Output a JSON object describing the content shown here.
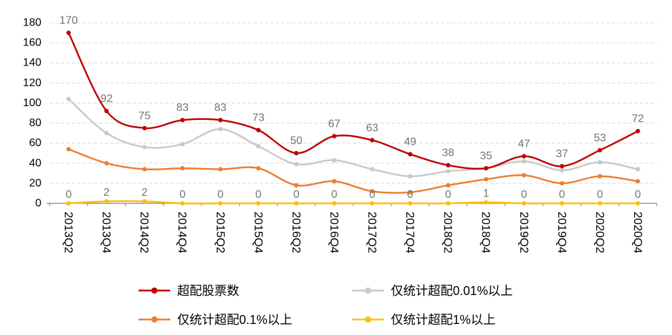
{
  "chart_data": {
    "type": "line",
    "categories": [
      "2013Q2",
      "2013Q4",
      "2014Q2",
      "2014Q4",
      "2015Q2",
      "2015Q4",
      "2016Q2",
      "2016Q4",
      "2017Q2",
      "2017Q4",
      "2018Q2",
      "2018Q4",
      "2019Q2",
      "2019Q4",
      "2020Q2",
      "2020Q4"
    ],
    "series": [
      {
        "name": "超配股票数",
        "color": "#c00000",
        "values": [
          170,
          92,
          75,
          83,
          83,
          73,
          50,
          67,
          63,
          49,
          38,
          35,
          47,
          37,
          53,
          72
        ],
        "point_labels": true
      },
      {
        "name": "仅统计超配0.01%以上",
        "color": "#c9c9c9",
        "values": [
          104,
          70,
          56,
          59,
          74,
          57,
          39,
          43,
          34,
          27,
          32,
          35,
          42,
          33,
          41,
          34
        ],
        "point_labels": false
      },
      {
        "name": "仅统计超配0.1%以上",
        "color": "#ed7d31",
        "values": [
          54,
          40,
          34,
          35,
          34,
          35,
          18,
          22,
          12,
          11,
          18,
          24,
          28,
          20,
          27,
          22
        ],
        "point_labels": false
      },
      {
        "name": "仅统计超配1%以上",
        "color": "#ffc000",
        "values": [
          0,
          2,
          2,
          0,
          0,
          0,
          0,
          0,
          0,
          0,
          0,
          1,
          0,
          0,
          0,
          0
        ],
        "point_labels": true
      }
    ],
    "ylim": [
      0,
      180
    ],
    "ytick_step": 20,
    "ytick_labels": [
      "0",
      "20",
      "40",
      "60",
      "80",
      "100",
      "120",
      "140",
      "160",
      "180"
    ],
    "grid": "dashed-horizontal",
    "legend_position": "bottom",
    "legend_rows": [
      [
        0,
        1
      ],
      [
        2,
        3
      ]
    ],
    "label_color": "#737373",
    "axis_color": "#808080",
    "grid_color": "#d9d9d9",
    "tick_label_color": "#000000"
  }
}
